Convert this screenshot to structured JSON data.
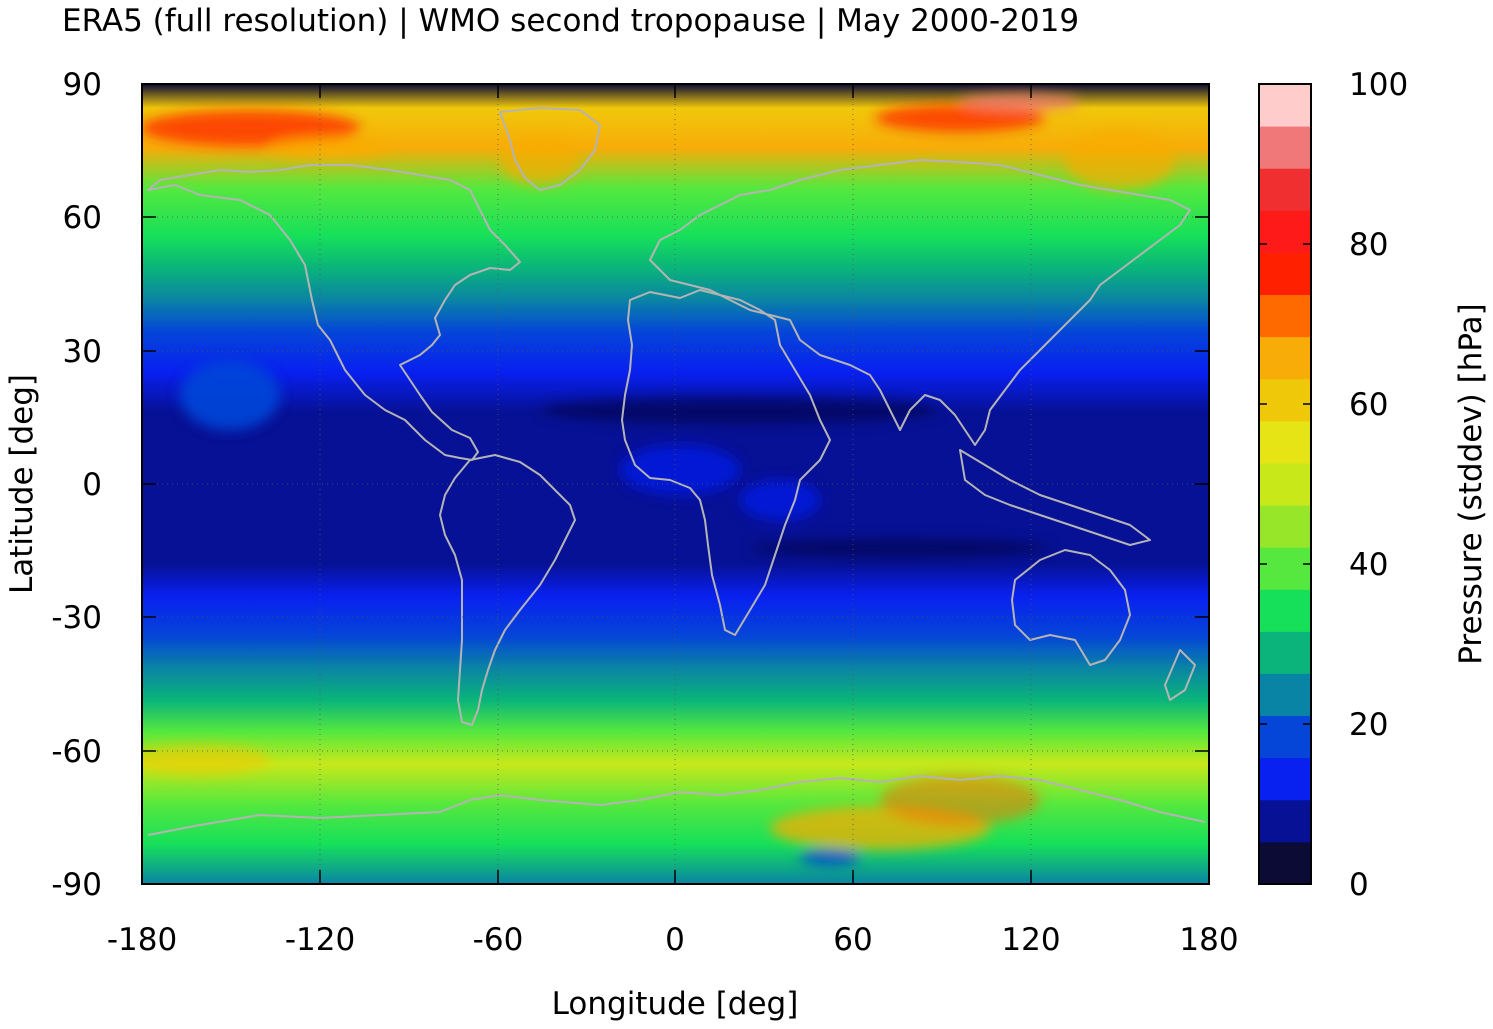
{
  "title": "ERA5 (full resolution) | WMO second tropopause | May 2000-2019",
  "chart_data": {
    "type": "heatmap",
    "projection": "plate carrée",
    "xlabel": "Longitude [deg]",
    "ylabel": "Latitude [deg]",
    "xlim": [
      -180,
      180
    ],
    "ylim": [
      -90,
      90
    ],
    "xticks": [
      "-180",
      "-120",
      "-60",
      "0",
      "60",
      "120",
      "180"
    ],
    "yticks": [
      "90",
      "60",
      "30",
      "0",
      "-30",
      "-60",
      "-90"
    ],
    "grid": "dotted",
    "coastlines": true,
    "colorbar": {
      "label": "Pressure (stddev) [hPa]",
      "range": [
        0,
        100
      ],
      "ticks": [
        "0",
        "20",
        "40",
        "60",
        "80",
        "100"
      ],
      "colors": [
        "#0b0b36",
        "#071196",
        "#0820f0",
        "#0545d8",
        "#0a84a4",
        "#0ab47a",
        "#16e05a",
        "#56e83e",
        "#98e62a",
        "#c8e81a",
        "#e6e414",
        "#f0c80a",
        "#f8ac08",
        "#ff6a00",
        "#ff2000",
        "#ff1a1a",
        "#f03030",
        "#f07878",
        "#ffcccc"
      ]
    },
    "zonal_pattern": [
      {
        "lat": 85,
        "value": 62
      },
      {
        "lat": 75,
        "value": 50
      },
      {
        "lat": 65,
        "value": 38
      },
      {
        "lat": 55,
        "value": 32
      },
      {
        "lat": 45,
        "value": 22
      },
      {
        "lat": 35,
        "value": 14
      },
      {
        "lat": 25,
        "value": 10
      },
      {
        "lat": 15,
        "value": 6
      },
      {
        "lat": 5,
        "value": 7
      },
      {
        "lat": -5,
        "value": 7
      },
      {
        "lat": -15,
        "value": 6
      },
      {
        "lat": -25,
        "value": 10
      },
      {
        "lat": -32,
        "value": 14
      },
      {
        "lat": -40,
        "value": 22
      },
      {
        "lat": -50,
        "value": 35
      },
      {
        "lat": -60,
        "value": 45
      },
      {
        "lat": -70,
        "value": 44
      },
      {
        "lat": -80,
        "value": 40
      },
      {
        "lat": -88,
        "value": 22
      }
    ]
  }
}
